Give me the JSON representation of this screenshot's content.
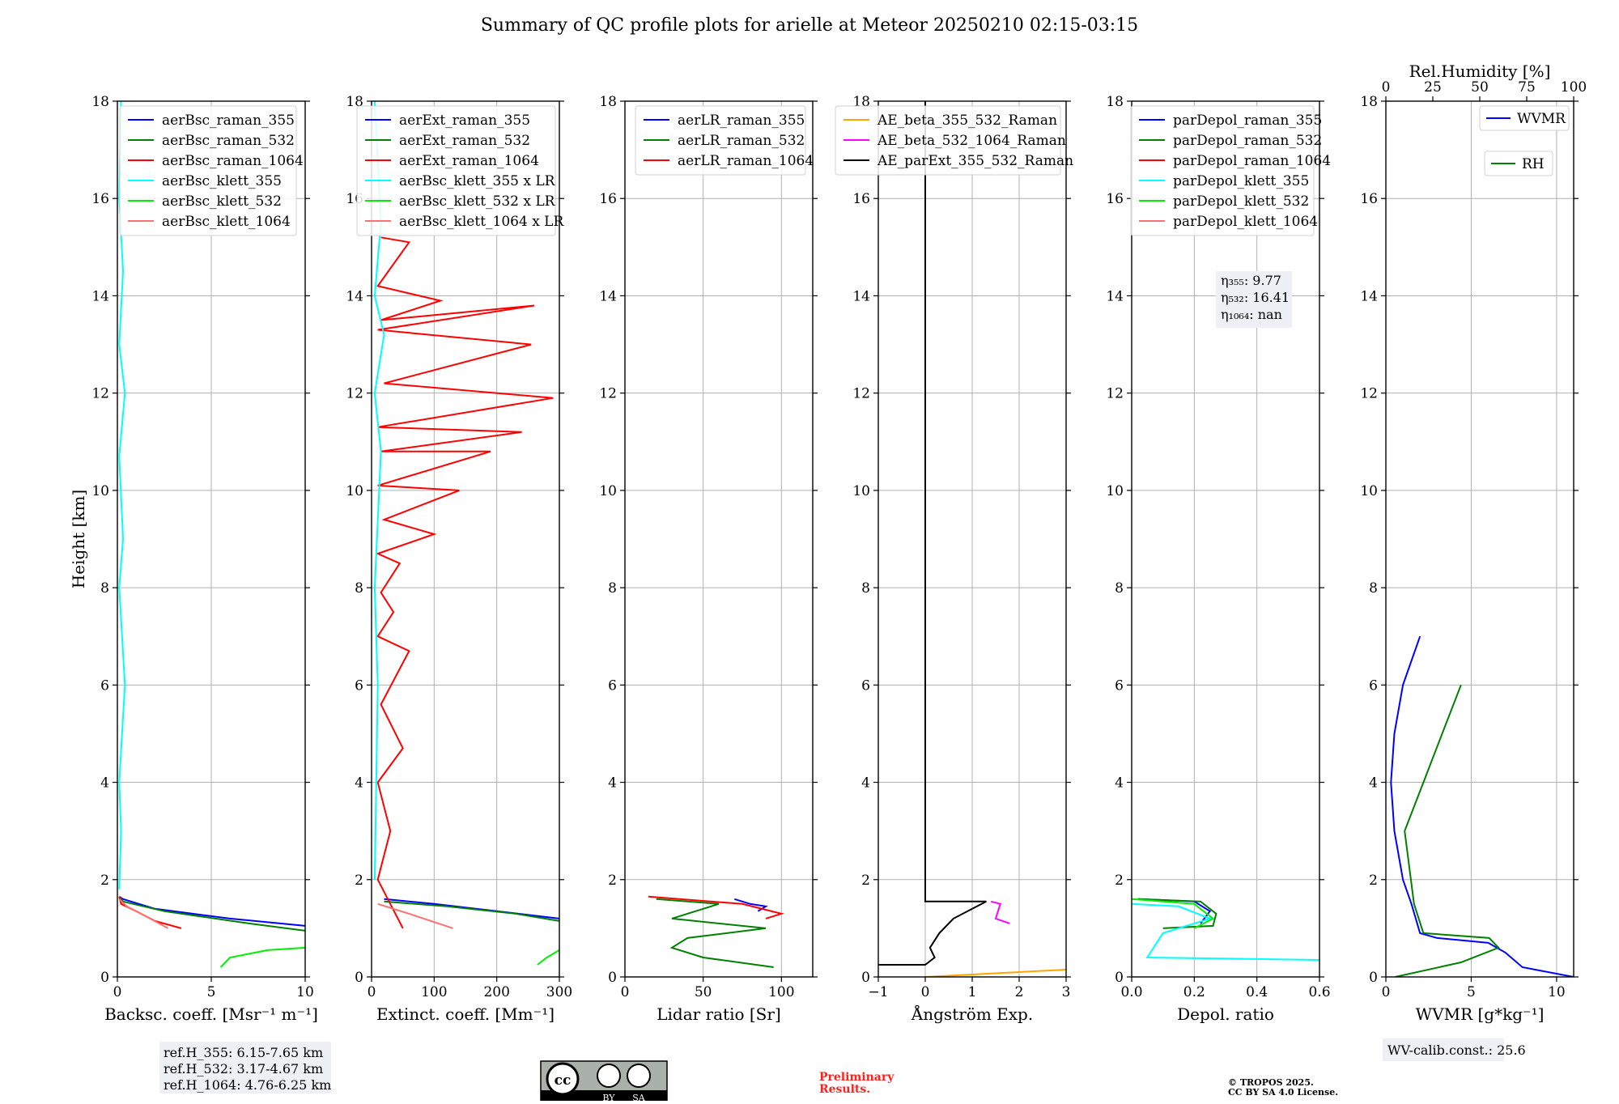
{
  "title": "Summary of QC profile plots for arielle at Meteor 20250210 02:15-03:15",
  "chart_data": [
    {
      "type": "line",
      "panel": "backscatter",
      "xlabel": "Backsc. coeff. [Msr⁻¹ m⁻¹]",
      "ylabel": "Height [km]",
      "xlim": [
        0,
        10
      ],
      "ylim": [
        0,
        18
      ],
      "xticks": [
        "0",
        "5",
        "10"
      ],
      "yticks": [
        "0",
        "2",
        "4",
        "6",
        "8",
        "10",
        "12",
        "14",
        "16",
        "18"
      ],
      "legend": "top-right",
      "series": [
        {
          "name": "aerBsc_raman_355",
          "color": "#0000ff",
          "x": [
            0.1,
            0.3,
            2.0,
            6.0,
            10.0
          ],
          "y": [
            1.65,
            1.6,
            1.4,
            1.2,
            1.05
          ]
        },
        {
          "name": "aerBsc_raman_532",
          "color": "#008000",
          "x": [
            0.1,
            0.3,
            2.5,
            7.0,
            10.0
          ],
          "y": [
            1.65,
            1.55,
            1.35,
            1.1,
            0.95
          ]
        },
        {
          "name": "aerBsc_raman_1064",
          "color": "#ff0000",
          "x": [
            0.1,
            0.2,
            1.0,
            2.0,
            3.4
          ],
          "y": [
            1.65,
            1.5,
            1.35,
            1.15,
            1.0
          ]
        },
        {
          "name": "aerBsc_klett_355",
          "color": "#00ffff",
          "x": [
            0.2,
            0.1,
            0.3,
            0.1,
            0.4,
            0.1,
            0.3,
            0.1,
            0.4,
            0.1,
            0.2,
            0.1
          ],
          "y": [
            18,
            16,
            14.5,
            13,
            12,
            10.7,
            9,
            8,
            6,
            4,
            3,
            1.8
          ]
        },
        {
          "name": "aerBsc_klett_532",
          "color": "#00ee00",
          "x": [
            5.5,
            6.0,
            8.0,
            10.0
          ],
          "y": [
            0.2,
            0.4,
            0.55,
            0.6
          ]
        },
        {
          "name": "aerBsc_klett_1064",
          "color": "#ff7070",
          "x": [
            0.1,
            0.5,
            1.5,
            2.7
          ],
          "y": [
            1.6,
            1.45,
            1.25,
            1.0
          ]
        }
      ],
      "annotation": [
        "ref.H_355: 6.15-7.65 km",
        "ref.H_532: 3.17-4.67 km",
        "ref.H_1064: 4.76-6.25 km"
      ]
    },
    {
      "type": "line",
      "panel": "extinction",
      "xlabel": "Extinct. coeff. [Mm⁻¹]",
      "xlim": [
        0,
        300
      ],
      "ylim": [
        0,
        18
      ],
      "xticks": [
        "0",
        "100",
        "200",
        "300"
      ],
      "yticks": [
        "0",
        "2",
        "4",
        "6",
        "8",
        "10",
        "12",
        "14",
        "16",
        "18"
      ],
      "legend": "top-right",
      "series": [
        {
          "name": "aerExt_raman_355",
          "color": "#0000ff",
          "x": [
            20,
            100,
            200,
            300
          ],
          "y": [
            1.6,
            1.5,
            1.35,
            1.2
          ]
        },
        {
          "name": "aerExt_raman_532",
          "color": "#008000",
          "x": [
            20,
            120,
            230,
            300
          ],
          "y": [
            1.55,
            1.45,
            1.3,
            1.15
          ]
        },
        {
          "name": "aerExt_raman_1064",
          "color": "#ff0000",
          "x": [
            15,
            60,
            10,
            110,
            15,
            260,
            10,
            255,
            20,
            290,
            10,
            240,
            15,
            190,
            10,
            140,
            20,
            100,
            10,
            45,
            15,
            35,
            10,
            60,
            15,
            50,
            10,
            30,
            10,
            50
          ],
          "y": [
            15.2,
            15.1,
            14.2,
            13.9,
            13.5,
            13.8,
            13.3,
            13.0,
            12.2,
            11.9,
            11.3,
            11.2,
            10.8,
            10.8,
            10.1,
            10.0,
            9.4,
            9.1,
            8.7,
            8.5,
            7.9,
            7.5,
            7.0,
            6.7,
            5.6,
            4.7,
            4.0,
            3.0,
            2.0,
            1.0
          ]
        },
        {
          "name": "aerBsc_klett_355 x LR",
          "color": "#00ffff",
          "x": [
            5,
            15,
            5,
            20,
            5,
            15,
            5,
            10,
            5
          ],
          "y": [
            18,
            15.5,
            14,
            13.2,
            12.0,
            10.8,
            8.0,
            6.0,
            2.0
          ]
        },
        {
          "name": "aerBsc_klett_532 x LR",
          "color": "#00ee00",
          "x": [
            265,
            280,
            300
          ],
          "y": [
            0.25,
            0.4,
            0.55
          ]
        },
        {
          "name": "aerBsc_klett_1064 x LR",
          "color": "#ff7070",
          "x": [
            10,
            60,
            130
          ],
          "y": [
            1.5,
            1.3,
            1.0
          ]
        }
      ]
    },
    {
      "type": "line",
      "panel": "lidar-ratio",
      "xlabel": "Lidar ratio [Sr]",
      "xlim": [
        0,
        120
      ],
      "ylim": [
        0,
        18
      ],
      "xticks": [
        "0",
        "50",
        "100"
      ],
      "yticks": [
        "0",
        "2",
        "4",
        "6",
        "8",
        "10",
        "12",
        "14",
        "16",
        "18"
      ],
      "legend": "top-right",
      "series": [
        {
          "name": "aerLR_raman_355",
          "color": "#0000ff",
          "x": [
            70,
            80,
            90,
            85
          ],
          "y": [
            1.6,
            1.5,
            1.45,
            1.35
          ]
        },
        {
          "name": "aerLR_raman_532",
          "color": "#008000",
          "x": [
            20,
            60,
            30,
            90,
            40,
            30,
            50,
            95
          ],
          "y": [
            1.6,
            1.5,
            1.2,
            1.0,
            0.8,
            0.6,
            0.4,
            0.2
          ]
        },
        {
          "name": "aerLR_raman_1064",
          "color": "#ff0000",
          "x": [
            15,
            75,
            100,
            90
          ],
          "y": [
            1.65,
            1.5,
            1.3,
            1.2
          ]
        }
      ]
    },
    {
      "type": "line",
      "panel": "angstrom",
      "xlabel": "Ångström Exp.",
      "xlim": [
        -1,
        3
      ],
      "ylim": [
        0,
        18
      ],
      "xticks": [
        "−1",
        "0",
        "1",
        "2",
        "3"
      ],
      "yticks": [
        "0",
        "2",
        "4",
        "6",
        "8",
        "10",
        "12",
        "14",
        "16",
        "18"
      ],
      "legend": "top-right",
      "series": [
        {
          "name": "AE_beta_355_532_Raman",
          "color": "#ffa500",
          "x": [
            0.0,
            1.0,
            2.0,
            3.0
          ],
          "y": [
            0.0,
            0.05,
            0.1,
            0.15
          ]
        },
        {
          "name": "AE_beta_532_1064_Raman",
          "color": "#ff00ff",
          "x": [
            1.4,
            1.6,
            1.5,
            1.8
          ],
          "y": [
            1.55,
            1.5,
            1.2,
            1.1
          ]
        },
        {
          "name": "AE_parExt_355_532_Raman",
          "color": "#000000",
          "x": [
            0.0,
            0.0,
            1.3,
            0.6,
            0.3,
            0.1,
            0.2,
            0.0,
            -1.0
          ],
          "y": [
            18.0,
            1.55,
            1.55,
            1.2,
            0.9,
            0.6,
            0.4,
            0.25,
            0.25
          ]
        }
      ]
    },
    {
      "type": "line",
      "panel": "depolarization",
      "xlabel": "Depol. ratio",
      "xlim": [
        0,
        0.6
      ],
      "ylim": [
        0,
        18
      ],
      "xticks": [
        "0.0",
        "0.2",
        "0.4",
        "0.6"
      ],
      "yticks": [
        "0",
        "2",
        "4",
        "6",
        "8",
        "10",
        "12",
        "14",
        "16",
        "18"
      ],
      "legend": "top-left",
      "series": [
        {
          "name": "parDepol_raman_355",
          "color": "#0000ff",
          "x": [
            0.02,
            0.2,
            0.25,
            0.22
          ],
          "y": [
            1.6,
            1.55,
            1.35,
            1.1
          ]
        },
        {
          "name": "parDepol_raman_532",
          "color": "#008000",
          "x": [
            0.02,
            0.22,
            0.27,
            0.26,
            0.1
          ],
          "y": [
            1.6,
            1.55,
            1.3,
            1.05,
            1.0
          ]
        },
        {
          "name": "parDepol_raman_1064",
          "color": "#ff0000",
          "x": [],
          "y": []
        },
        {
          "name": "parDepol_klett_355",
          "color": "#00ffff",
          "x": [
            0.0,
            0.15,
            0.25,
            0.1,
            0.05,
            0.6
          ],
          "y": [
            1.5,
            1.45,
            1.2,
            0.9,
            0.4,
            0.35
          ]
        },
        {
          "name": "parDepol_klett_532",
          "color": "#00ee00",
          "x": [
            0.0,
            0.2,
            0.26,
            0.2
          ],
          "y": [
            1.6,
            1.5,
            1.2,
            1.0
          ]
        },
        {
          "name": "parDepol_klett_1064",
          "color": "#ff7070",
          "x": [],
          "y": []
        }
      ],
      "annotation": [
        "η₃₅₅: 9.77",
        "η₅₃₂: 16.41",
        "η₁₀₆₄: nan"
      ]
    },
    {
      "type": "line",
      "panel": "water-vapor",
      "xlabel": "WVMR [g*kg⁻¹]",
      "xlabel_top": "Rel.Humidity [%]",
      "xlim": [
        0,
        11
      ],
      "xlim_top": [
        0,
        100
      ],
      "ylim": [
        0,
        18
      ],
      "xticks": [
        "0",
        "5",
        "10"
      ],
      "xticks_top": [
        "0",
        "25",
        "50",
        "75",
        "100"
      ],
      "yticks": [
        "0",
        "2",
        "4",
        "6",
        "8",
        "10",
        "12",
        "14",
        "16",
        "18"
      ],
      "legend": "top-right",
      "series": [
        {
          "name": "WVMR",
          "color": "#0000ff",
          "x": [
            11,
            8,
            7,
            6,
            3,
            2,
            1.5,
            1,
            0.5,
            0.3,
            0.5,
            1,
            2
          ],
          "y": [
            0.0,
            0.2,
            0.5,
            0.7,
            0.8,
            0.9,
            1.5,
            2.0,
            3.0,
            4.0,
            5.0,
            6.0,
            7.0
          ]
        },
        {
          "name": "RH",
          "color": "#008000",
          "x": [
            5,
            40,
            60,
            55,
            20,
            15,
            10,
            20,
            30,
            40
          ],
          "y": [
            0.0,
            0.3,
            0.6,
            0.8,
            0.9,
            1.5,
            3.0,
            4.0,
            5.0,
            6.0
          ]
        }
      ],
      "annotation": "WV-calib.const.: 25.6"
    }
  ],
  "footer": {
    "license_badge": [
      "cc",
      "BY",
      "SA"
    ],
    "preliminary": [
      "Preliminary",
      "Results."
    ],
    "copyright": [
      "© TROPOS 2025.",
      "CC BY SA 4.0 License."
    ]
  },
  "colors": {
    "raman_355": "#0000ff",
    "raman_532": "#008000",
    "raman_1064": "#ff0000",
    "klett_355": "#00ffff",
    "klett_532": "#00ee00",
    "klett_1064": "#ff7070",
    "preliminary": "#ff2020"
  }
}
